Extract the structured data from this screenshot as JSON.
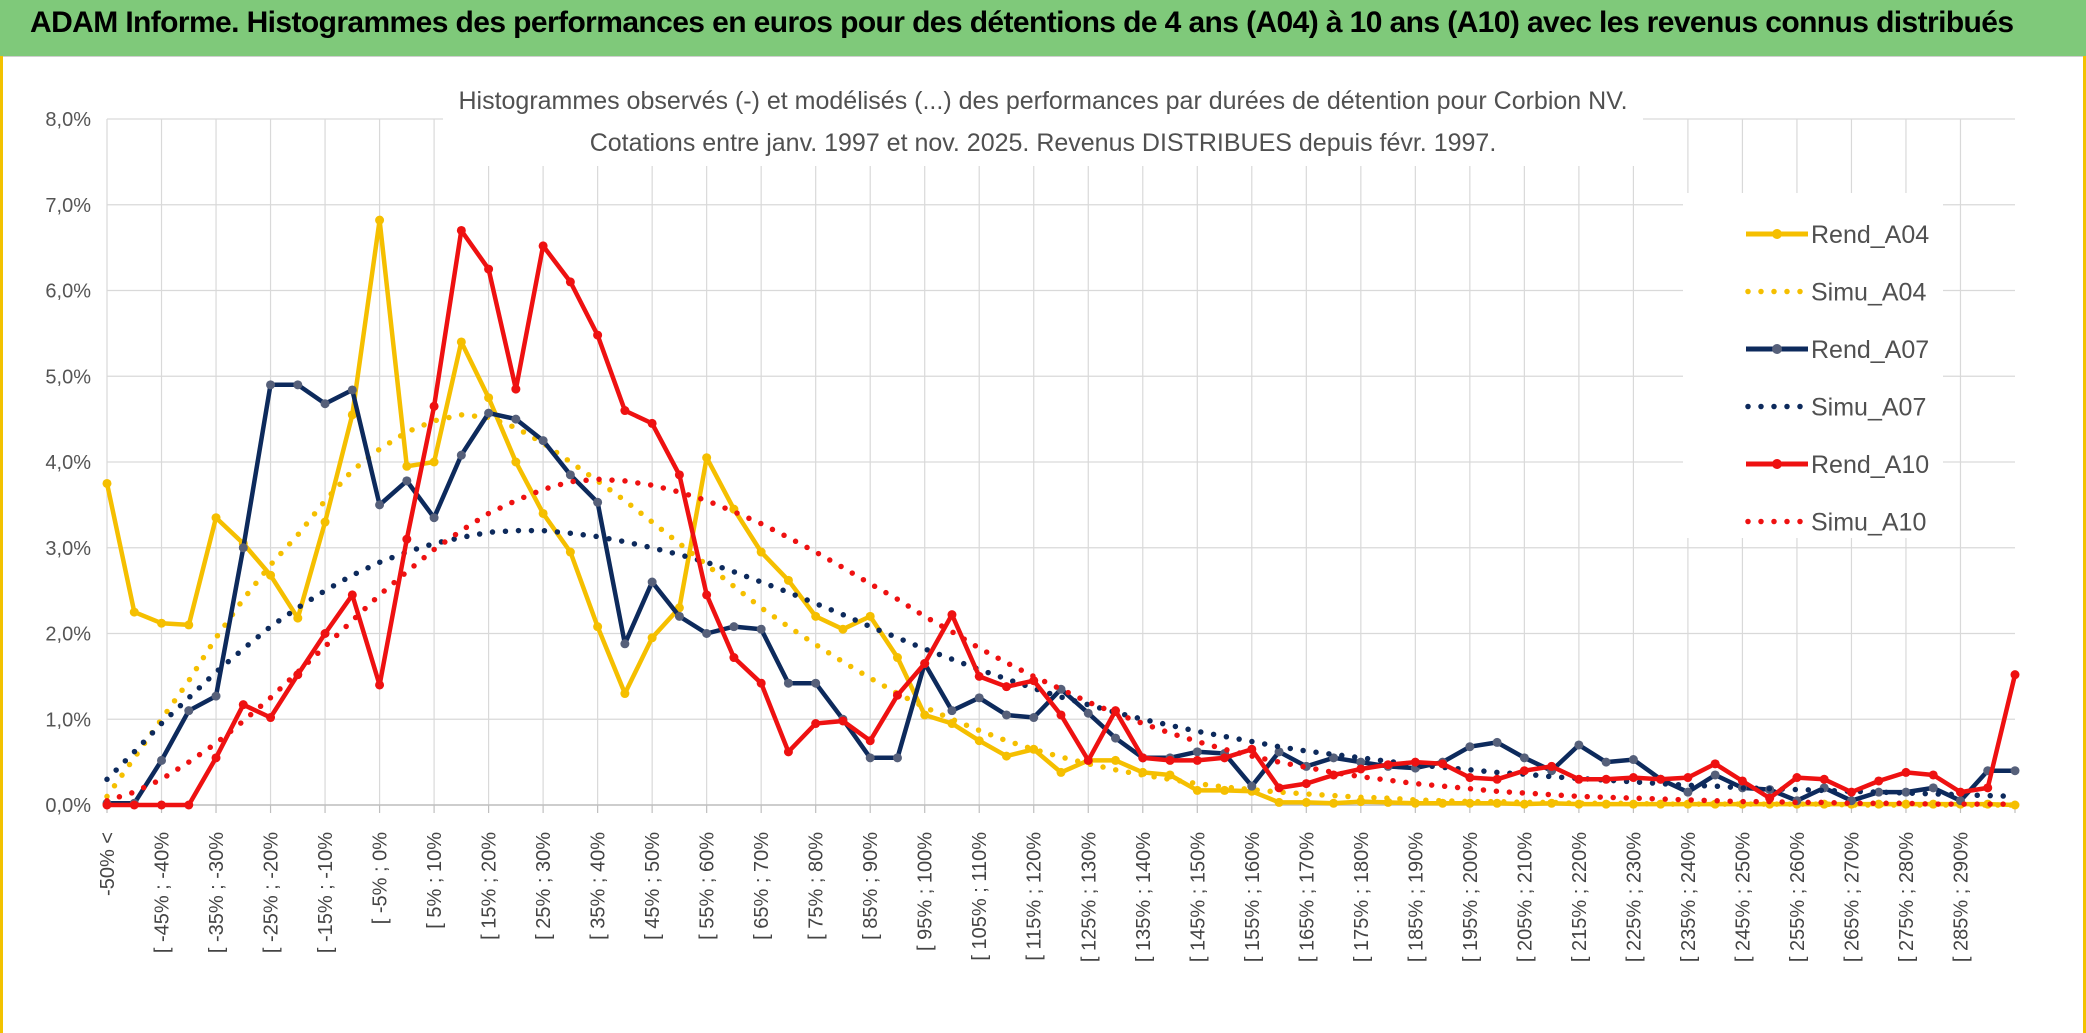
{
  "banner": {
    "title": "ADAM Informe. Histogrammes des performances en euros pour des détentions de 4 ans (A04) à 10 ans (A10) avec les revenus connus distribués"
  },
  "colors": {
    "banner_bg": "#7fc97a",
    "frame_border": "#f2c200",
    "gold": "#f5bf00",
    "navy": "#0d2a5c",
    "red": "#ee1111"
  },
  "chart_data": {
    "type": "line",
    "title_line1": "Histogrammes observés (-) et modélisés (...) des performances par durées de détention pour Corbion NV.",
    "title_line2": "Cotations entre janv. 1997 et nov. 2025. Revenus DISTRIBUES depuis févr. 1997.",
    "ylim": [
      0,
      8
    ],
    "y_ticks": [
      "0,0%",
      "1,0%",
      "2,0%",
      "3,0%",
      "4,0%",
      "5,0%",
      "6,0%",
      "7,0%",
      "8,0%"
    ],
    "grid": true,
    "legend_position": "right",
    "x_tick_labels": [
      "-50% <",
      "[ -45% ; -40%",
      "[ -35% ; -30%",
      "[ -25% ; -20%",
      "[ -15% ; -10%",
      "[ -5% ; 0%",
      "[ 5% ; 10%",
      "[ 15% ; 20%",
      "[ 25% ; 30%",
      "[ 35% ; 40%",
      "[ 45% ; 50%",
      "[ 55% ; 60%",
      "[ 65% ; 70%",
      "[ 75% ; 80%",
      "[ 85% ; 90%",
      "[ 95% ; 100%",
      "[ 105% ; 110%",
      "[ 115% ; 120%",
      "[ 125% ; 130%",
      "[ 135% ; 140%",
      "[ 145% ; 150%",
      "[ 155% ; 160%",
      "[ 165% ; 170%",
      "[ 175% ; 180%",
      "[ 185% ; 190%",
      "[ 195% ; 200%",
      "[ 205% ; 210%",
      "[ 215% ; 220%",
      "[ 225% ; 230%",
      "[ 235% ; 240%",
      "[ 245% ; 250%",
      "[ 255% ; 260%",
      "[ 265% ; 270%",
      "[ 275% ; 280%",
      "[ 285% ; 290%"
    ],
    "series": [
      {
        "name": "Rend_A04",
        "style": "solid",
        "color": "#f5bf00",
        "values": [
          3.75,
          2.25,
          2.12,
          2.1,
          3.35,
          3.05,
          2.68,
          2.18,
          3.3,
          4.55,
          6.82,
          3.95,
          4.0,
          5.4,
          4.75,
          4.0,
          3.4,
          2.95,
          2.08,
          1.3,
          1.95,
          2.3,
          4.05,
          3.45,
          2.95,
          2.62,
          2.2,
          2.05,
          2.2,
          1.72,
          1.05,
          0.95,
          0.75,
          0.57,
          0.65,
          0.38,
          0.52,
          0.52,
          0.38,
          0.35,
          0.17,
          0.17,
          0.16,
          0.03,
          0.03,
          0.02,
          0.04,
          0.03,
          0.02,
          0.02,
          0.02,
          0.02,
          0.01,
          0.02,
          0.01,
          0.01,
          0.01,
          0.01,
          0.01,
          0.01,
          0.01,
          0.01,
          0.01,
          0.01,
          0.01,
          0.01,
          0.01,
          0.01,
          0.01,
          0.01,
          0.0
        ]
      },
      {
        "name": "Simu_A04",
        "style": "dotted",
        "color": "#f5bf00",
        "values": [
          0.1,
          0.55,
          1.0,
          1.45,
          1.95,
          2.4,
          2.8,
          3.15,
          3.55,
          3.9,
          4.15,
          4.35,
          4.48,
          4.55,
          4.52,
          4.4,
          4.22,
          4.0,
          3.78,
          3.55,
          3.3,
          3.05,
          2.8,
          2.55,
          2.3,
          2.08,
          1.87,
          1.67,
          1.48,
          1.3,
          1.14,
          1.0,
          0.87,
          0.75,
          0.65,
          0.56,
          0.48,
          0.41,
          0.35,
          0.3,
          0.25,
          0.21,
          0.18,
          0.15,
          0.13,
          0.11,
          0.09,
          0.08,
          0.06,
          0.05,
          0.04,
          0.04,
          0.03,
          0.03,
          0.02,
          0.02,
          0.02,
          0.01,
          0.01,
          0.01,
          0.01,
          0.01,
          0.01,
          0.01,
          0.0,
          0.0,
          0.0,
          0.0,
          0.0,
          0.0,
          0.0
        ]
      },
      {
        "name": "Rend_A07",
        "style": "solid",
        "color": "#0d2a5c",
        "values": [
          0.02,
          0.02,
          0.52,
          1.1,
          1.27,
          3.0,
          4.9,
          4.9,
          4.68,
          4.84,
          3.5,
          3.78,
          3.35,
          4.08,
          4.57,
          4.5,
          4.25,
          3.85,
          3.53,
          1.88,
          2.6,
          2.2,
          2.0,
          2.08,
          2.05,
          1.42,
          1.42,
          1.0,
          0.55,
          0.55,
          1.65,
          1.1,
          1.25,
          1.05,
          1.02,
          1.35,
          1.07,
          0.78,
          0.55,
          0.55,
          0.62,
          0.6,
          0.22,
          0.62,
          0.45,
          0.55,
          0.5,
          0.45,
          0.43,
          0.5,
          0.68,
          0.73,
          0.55,
          0.4,
          0.7,
          0.5,
          0.53,
          0.3,
          0.15,
          0.35,
          0.2,
          0.18,
          0.05,
          0.2,
          0.05,
          0.15,
          0.15,
          0.2,
          0.05,
          0.4,
          0.4
        ]
      },
      {
        "name": "Simu_A07",
        "style": "dotted",
        "color": "#0d2a5c",
        "values": [
          0.3,
          0.62,
          0.95,
          1.25,
          1.55,
          1.82,
          2.08,
          2.3,
          2.5,
          2.68,
          2.83,
          2.95,
          3.05,
          3.12,
          3.18,
          3.2,
          3.2,
          3.17,
          3.13,
          3.07,
          3.0,
          2.92,
          2.83,
          2.72,
          2.6,
          2.48,
          2.35,
          2.22,
          2.08,
          1.95,
          1.82,
          1.7,
          1.58,
          1.47,
          1.36,
          1.26,
          1.17,
          1.08,
          1.0,
          0.93,
          0.86,
          0.8,
          0.74,
          0.68,
          0.63,
          0.59,
          0.55,
          0.51,
          0.47,
          0.44,
          0.41,
          0.38,
          0.36,
          0.33,
          0.31,
          0.29,
          0.27,
          0.25,
          0.23,
          0.22,
          0.2,
          0.19,
          0.18,
          0.17,
          0.16,
          0.15,
          0.14,
          0.13,
          0.12,
          0.11,
          0.1
        ]
      },
      {
        "name": "Rend_A10",
        "style": "solid",
        "color": "#ee1111",
        "values": [
          0.0,
          0.0,
          0.0,
          0.0,
          0.55,
          1.17,
          1.02,
          1.52,
          2.0,
          2.45,
          1.4,
          3.1,
          4.65,
          6.7,
          6.25,
          4.85,
          6.52,
          6.1,
          5.48,
          4.6,
          4.45,
          3.85,
          2.45,
          1.72,
          1.42,
          0.62,
          0.95,
          0.98,
          0.75,
          1.28,
          1.65,
          2.22,
          1.5,
          1.38,
          1.45,
          1.05,
          0.52,
          1.1,
          0.55,
          0.52,
          0.52,
          0.55,
          0.65,
          0.2,
          0.25,
          0.35,
          0.42,
          0.47,
          0.5,
          0.48,
          0.32,
          0.3,
          0.4,
          0.45,
          0.3,
          0.3,
          0.32,
          0.3,
          0.32,
          0.48,
          0.28,
          0.08,
          0.32,
          0.3,
          0.15,
          0.28,
          0.38,
          0.35,
          0.15,
          0.2,
          1.52
        ]
      },
      {
        "name": "Simu_A10",
        "style": "dotted",
        "color": "#ee1111",
        "values": [
          0.05,
          0.15,
          0.3,
          0.5,
          0.72,
          0.98,
          1.25,
          1.55,
          1.85,
          2.15,
          2.45,
          2.72,
          2.98,
          3.2,
          3.4,
          3.55,
          3.68,
          3.77,
          3.8,
          3.78,
          3.73,
          3.65,
          3.55,
          3.42,
          3.28,
          3.12,
          2.95,
          2.77,
          2.58,
          2.4,
          2.2,
          2.02,
          1.83,
          1.66,
          1.5,
          1.35,
          1.2,
          1.07,
          0.95,
          0.84,
          0.74,
          0.65,
          0.57,
          0.5,
          0.44,
          0.38,
          0.33,
          0.29,
          0.25,
          0.22,
          0.19,
          0.16,
          0.14,
          0.12,
          0.1,
          0.09,
          0.08,
          0.07,
          0.06,
          0.05,
          0.04,
          0.04,
          0.03,
          0.03,
          0.02,
          0.02,
          0.02,
          0.01,
          0.01,
          0.01,
          0.01
        ]
      }
    ]
  }
}
